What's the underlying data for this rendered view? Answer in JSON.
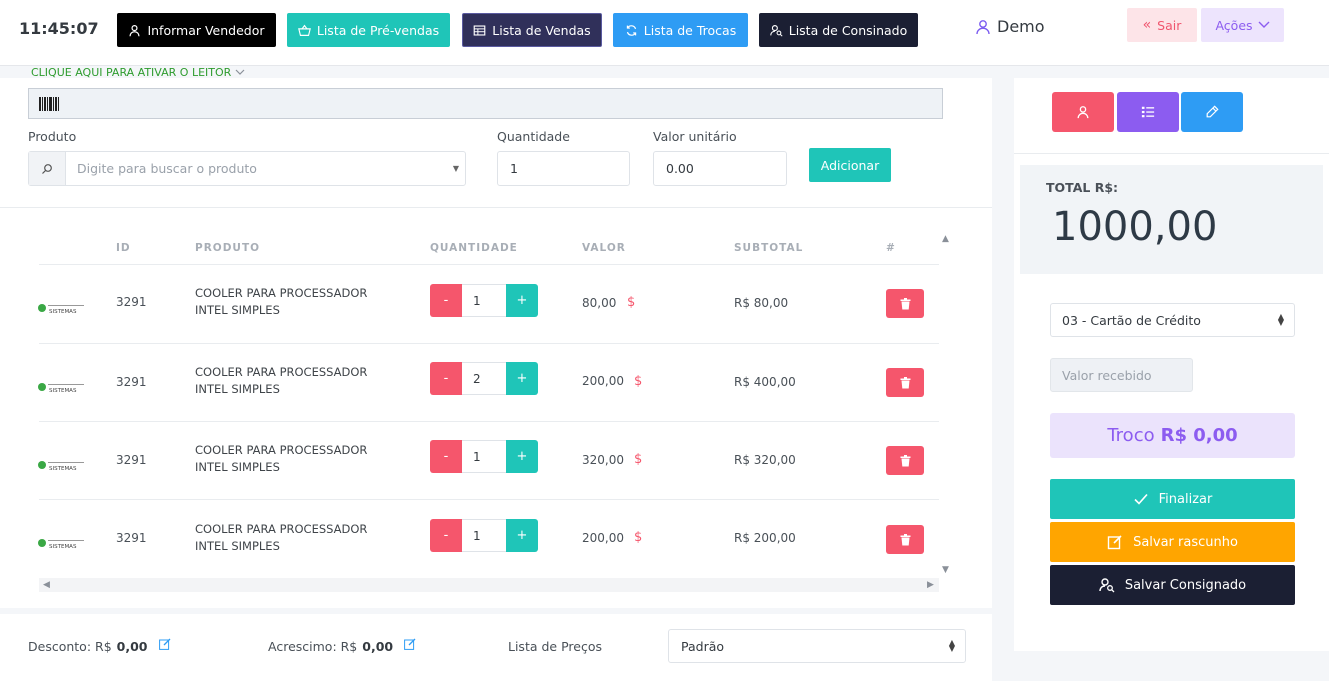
{
  "header": {
    "clock": "11:45:07",
    "buttons": [
      {
        "label": "Informar Vendedor",
        "color": "#000000"
      },
      {
        "label": "Lista de Pré-vendas",
        "color": "#1fc5b8"
      },
      {
        "label": "Lista de Vendas",
        "color": "#30305a"
      },
      {
        "label": "Lista de Trocas",
        "color": "#2e9cf4"
      },
      {
        "label": "Lista de Consinado",
        "color": "#1b1f33"
      }
    ],
    "user": "Demo",
    "sair_label": "Sair",
    "acoes_label": "Ações"
  },
  "reader": {
    "activate_label": "CLIQUE AQUI PARA ATIVAR O LEITOR"
  },
  "form": {
    "produto_label": "Produto",
    "produto_placeholder": "Digite para buscar o produto",
    "quantidade_label": "Quantidade",
    "quantidade_value": "1",
    "valor_label": "Valor unitário",
    "valor_value": "0.00",
    "add_label": "Adicionar"
  },
  "table": {
    "headers": {
      "id": "ID",
      "produto": "PRODUTO",
      "quantidade": "QUANTIDADE",
      "valor": "VALOR",
      "subtotal": "SUBTOTAL",
      "hash": "#"
    },
    "rows": [
      {
        "id": "3291",
        "name_line1": "COOLER PARA PROCESSADOR",
        "name_line2": "INTEL SIMPLES",
        "qty": "1",
        "valor": "80,00",
        "subtotal": "R$ 80,00"
      },
      {
        "id": "3291",
        "name_line1": "COOLER PARA PROCESSADOR",
        "name_line2": "INTEL SIMPLES",
        "qty": "2",
        "valor": "200,00",
        "subtotal": "R$ 400,00"
      },
      {
        "id": "3291",
        "name_line1": "COOLER PARA PROCESSADOR",
        "name_line2": "INTEL SIMPLES",
        "qty": "1",
        "valor": "320,00",
        "subtotal": "R$ 320,00"
      },
      {
        "id": "3291",
        "name_line1": "COOLER PARA PROCESSADOR",
        "name_line2": "INTEL SIMPLES",
        "qty": "1",
        "valor": "200,00",
        "subtotal": "R$ 200,00"
      }
    ],
    "logo_text": "SISTEMAS",
    "minus": "-",
    "plus": "+",
    "currency_symbol": "$"
  },
  "footer": {
    "desconto_label": "Desconto: R$",
    "desconto_value": "0,00",
    "acrescimo_label": "Acrescimo: R$",
    "acrescimo_value": "0,00",
    "lista_label": "Lista de Preços",
    "lista_value": "Padrão"
  },
  "summary": {
    "total_label": "TOTAL R$:",
    "total_value": "1000,00",
    "payment_method": "03 - Cartão de Crédito",
    "valor_recebido_placeholder": "Valor recebido",
    "troco_label": "Troco",
    "troco_value": "R$ 0,00",
    "finalizar_label": "Finalizar",
    "rascunho_label": "Salvar rascunho",
    "consignado_label": "Salvar Consignado"
  },
  "colors": {
    "teal": "#1fc5b8",
    "red": "#f5566c",
    "purple": "#8c5cf0",
    "blue": "#2e9cf4",
    "orange": "#ffa500",
    "dark": "#1b1f33"
  }
}
